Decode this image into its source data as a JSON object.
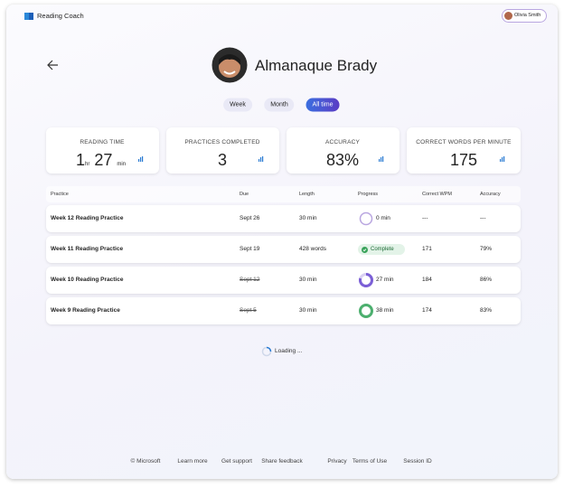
{
  "app": {
    "name": "Reading Coach",
    "user": "Olivia Smith"
  },
  "student": {
    "name": "Almanaque Brady"
  },
  "tabs": [
    "Week",
    "Month",
    "All time"
  ],
  "stats": [
    {
      "label": "READING TIME",
      "hours": "1",
      "hours_unit": "hr",
      "minutes": "27",
      "minutes_unit": "min"
    },
    {
      "label": "PRACTICES COMPLETED",
      "value": "3"
    },
    {
      "label": "ACCURACY",
      "value": "83%"
    },
    {
      "label": "CORRECT WORDS PER MINUTE",
      "value": "175"
    }
  ],
  "table": {
    "columns": [
      "Practice",
      "Due",
      "Length",
      "Progress",
      "Correct WPM",
      "Accuracy"
    ],
    "rows": [
      [
        "Week 12 Reading Practice",
        "Sept 26",
        "30 min",
        "0 min",
        "---",
        "---"
      ],
      [
        "Week 11 Reading Practice",
        "Sept 19",
        "428 words",
        "Complete",
        "171",
        "79%"
      ],
      [
        "Week 10 Reading Practice",
        "Sept 12",
        "30 min",
        "27 min",
        "184",
        "86%"
      ],
      [
        "Week 9 Reading Practice",
        "Sept 5",
        "30 min",
        "38 min",
        "174",
        "83%"
      ]
    ]
  },
  "loading": "Loading ...",
  "footer": [
    "© Microsoft",
    "Learn more",
    "Get support",
    "Share feedback",
    "Privacy",
    "Terms of Use",
    "Session ID"
  ]
}
